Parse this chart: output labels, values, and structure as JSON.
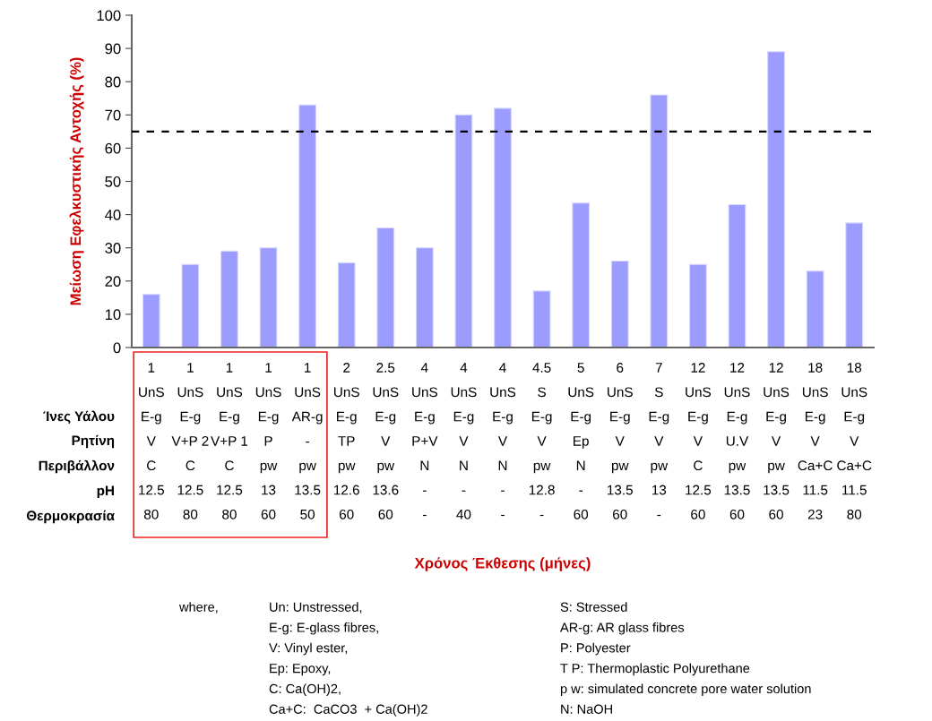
{
  "chart_data": {
    "type": "bar",
    "ylabel": "Μείωση Εφελκυστικής Αντοχής (%)",
    "xlabel": "Χρόνος Έκθεσης (μήνες)",
    "categories": [
      "1\nUnS\nE-g\nV\nC\n12.5\n80",
      "1\nUnS\nE-g\nV+P 2\nC\n12.5\n80",
      "1\nUnS\nE-g\nV+P 1\nC\n12.5\n80",
      "1\nUnS\nE-g\nP\npw\n13\n60",
      "1\nUnS\nAR-g\n-\npw\n13.5\n50",
      "2\nUnS\nE-g\nTP\npw\n12.6\n60",
      "2.5\nUnS\nE-g\nV\npw\n13.6\n60",
      "4\nUnS\nE-g\nP+V\nN\n-\n-",
      "4\nUnS\nE-g\nV\nN\n-\n40",
      "4\nUnS\nE-g\nV\nN\n-\n-",
      "4.5\nS\nE-g\nV\npw\n12.8\n-",
      "5\nUnS\nE-g\nEp\nN\n-\n60",
      "6\nUnS\nE-g\nV\npw\n13.5\n60",
      "7\nS\nE-g\nV\npw\n13\n-",
      "12\nUnS\nE-g\nV\nC\n12.5\n60",
      "12\nUnS\nE-g\nU.V\npw\n13.5\n60",
      "12\nUnS\nE-g\nV\npw\n13.5\n60",
      "18\nUnS\nE-g\nV\nCa+C\n11.5\n23",
      "18\nUnS\nE-g\nV\nCa+C\n11.5\n80"
    ],
    "values": [
      16,
      25,
      29,
      30,
      73,
      25.5,
      36,
      30,
      70,
      72,
      17,
      43.5,
      26,
      76,
      25,
      43,
      89,
      23,
      37.5
    ],
    "color": "#9c9cff",
    "ylim": [
      0,
      100
    ],
    "yticks": [
      0,
      10,
      20,
      30,
      40,
      50,
      60,
      70,
      80,
      90,
      100
    ],
    "ref_lines": [
      {
        "axis": "y",
        "value": 65,
        "color": "#000000",
        "line_style": "dashed"
      }
    ],
    "grid": false,
    "annotations": [
      "Ίνες Υάλου",
      "Ρητίνη",
      "Περιβάλλον",
      "pH",
      "Θερμοκρασία",
      "where,",
      "Un: Unstressed,",
      "E-g: E-glass fibres,",
      "V: Vinyl ester,",
      "Ep: Epoxy,",
      "C: Ca(OH)2,",
      "Ca+C:  CaCO3  + Ca(OH)2",
      "S: Stressed",
      "AR-g: AR glass fibres",
      "P: Polyester",
      "T P: Thermoplastic Polyurethane",
      "p w: simulated concrete pore water solution",
      "N: NaOH"
    ]
  }
}
